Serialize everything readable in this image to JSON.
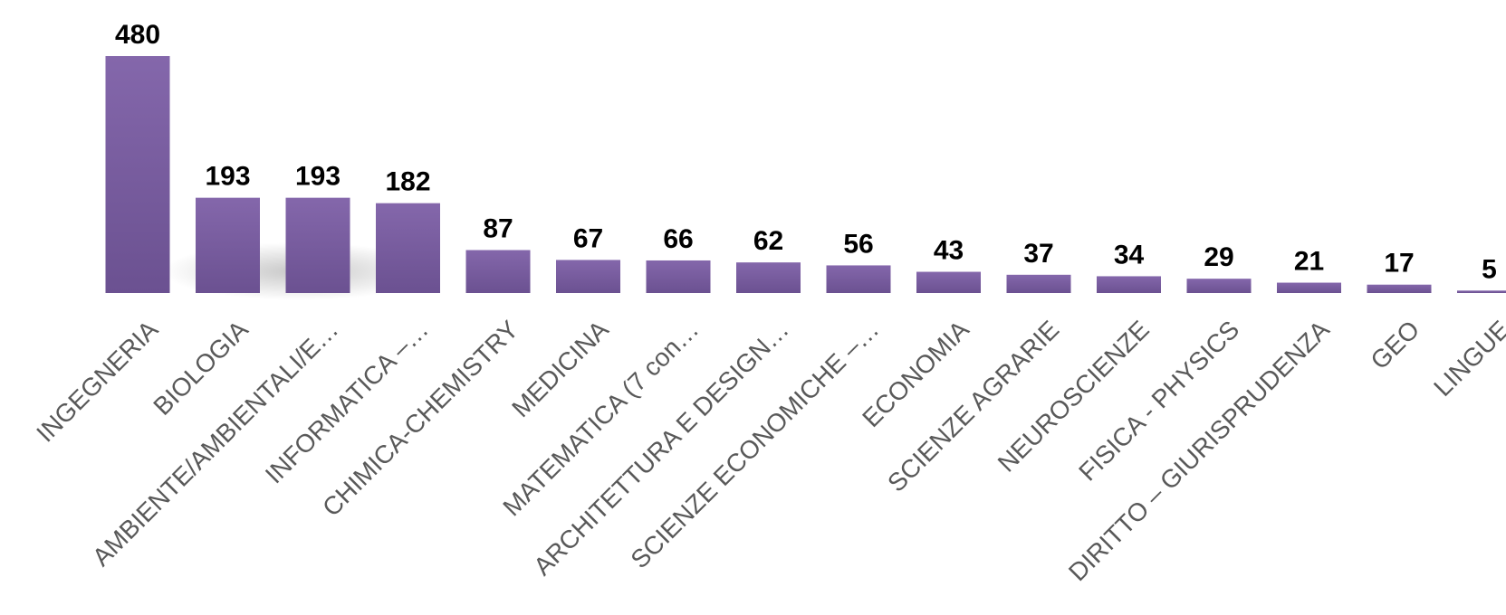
{
  "chart_data": {
    "type": "bar",
    "title": "",
    "xlabel": "",
    "ylabel": "",
    "ylim": [
      0,
      480
    ],
    "grid": false,
    "legend": "none",
    "bar_color": "#7B5FA0",
    "categories": [
      "INGEGNERIA",
      "BIOLOGIA",
      "AMBIENTE/AMBIENTALI/E…",
      "INFORMATICA –…",
      "CHIMICA-CHEMISTRY",
      "MEDICINA",
      "MATEMATICA (7 con…",
      "ARCHITETTURA E DESIGN…",
      "SCIENZE ECONOMICHE –…",
      "ECONOMIA",
      "SCIENZE AGRARIE",
      "NEUROSCIENZE",
      "FISICA - PHYSICS",
      "DIRITTO – GIURISPRUDENZA",
      "GEO",
      "LINGUE"
    ],
    "values": [
      480,
      193,
      193,
      182,
      87,
      67,
      66,
      62,
      56,
      43,
      37,
      34,
      29,
      21,
      17,
      5
    ]
  }
}
